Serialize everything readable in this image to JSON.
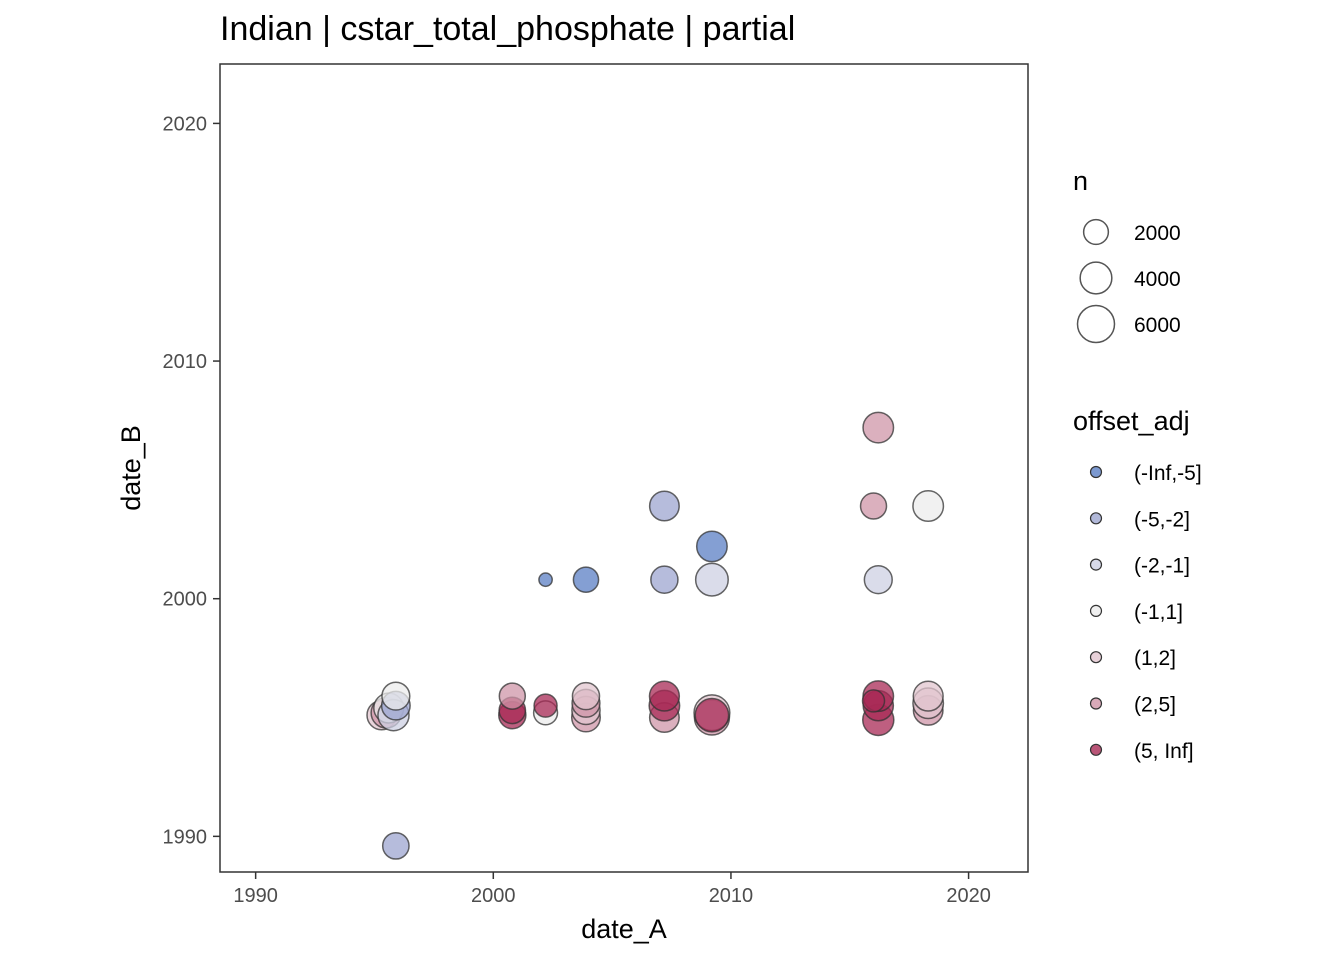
{
  "chart_data": {
    "type": "scatter",
    "title": "Indian | cstar_total_phosphate | partial",
    "xlabel": "date_A",
    "ylabel": "date_B",
    "xlim": [
      1988.5,
      2022.5
    ],
    "ylim": [
      1988.5,
      2022.5
    ],
    "xticks": [
      "1990",
      "2000",
      "2010",
      "2020"
    ],
    "yticks": [
      "1990",
      "2000",
      "2010",
      "2020"
    ],
    "grid": false,
    "size_legend": {
      "title": "n",
      "entries": [
        {
          "label": "2000",
          "value": 2000
        },
        {
          "label": "4000",
          "value": 4000
        },
        {
          "label": "6000",
          "value": 6000
        }
      ]
    },
    "color_legend": {
      "title": "offset_adj",
      "entries": [
        {
          "label": "(-Inf,-5]",
          "color": "#5b7fc4"
        },
        {
          "label": "(-5,-2]",
          "color": "#9ea6d0"
        },
        {
          "label": "(-2,-1]",
          "color": "#cdd0e3"
        },
        {
          "label": "(-1,1]",
          "color": "#ececec"
        },
        {
          "label": "(1,2]",
          "color": "#e2c6cf"
        },
        {
          "label": "(2,5]",
          "color": "#cf95a8"
        },
        {
          "label": "(5, Inf]",
          "color": "#a82a55"
        }
      ]
    },
    "points": [
      {
        "x": 1995.3,
        "y": 1995.1,
        "n": 3200,
        "group": "(1,2]"
      },
      {
        "x": 1995.5,
        "y": 1995.2,
        "n": 3600,
        "group": "(2,5]"
      },
      {
        "x": 1995.6,
        "y": 1995.4,
        "n": 3400,
        "group": "(-1,1]"
      },
      {
        "x": 1995.8,
        "y": 1995.1,
        "n": 3800,
        "group": "(-2,-1]"
      },
      {
        "x": 1995.9,
        "y": 1995.5,
        "n": 3000,
        "group": "(-5,-2]"
      },
      {
        "x": 1995.9,
        "y": 1995.9,
        "n": 2800,
        "group": "(-1,1]"
      },
      {
        "x": 1995.9,
        "y": 1989.6,
        "n": 2400,
        "group": "(-5,-2]"
      },
      {
        "x": 2000.8,
        "y": 1995.1,
        "n": 2600,
        "group": "(5, Inf]"
      },
      {
        "x": 2000.8,
        "y": 1995.3,
        "n": 2400,
        "group": "(5, Inf]"
      },
      {
        "x": 2000.8,
        "y": 1995.9,
        "n": 2300,
        "group": "(2,5]"
      },
      {
        "x": 2002.2,
        "y": 1995.2,
        "n": 1800,
        "group": "(-1,1]"
      },
      {
        "x": 2002.2,
        "y": 1995.5,
        "n": 1600,
        "group": "(5, Inf]"
      },
      {
        "x": 2002.2,
        "y": 2000.8,
        "n": 200,
        "group": "(-Inf,-5]"
      },
      {
        "x": 2003.9,
        "y": 2000.8,
        "n": 2100,
        "group": "(-Inf,-5]"
      },
      {
        "x": 2003.9,
        "y": 1995.0,
        "n": 3000,
        "group": "(2,5]"
      },
      {
        "x": 2003.9,
        "y": 1995.3,
        "n": 2900,
        "group": "(1,2]"
      },
      {
        "x": 2003.9,
        "y": 1995.6,
        "n": 2800,
        "group": "(2,5]"
      },
      {
        "x": 2003.9,
        "y": 1995.9,
        "n": 2600,
        "group": "(1,2]"
      },
      {
        "x": 2007.2,
        "y": 1995.0,
        "n": 3300,
        "group": "(2,5]"
      },
      {
        "x": 2007.2,
        "y": 1995.5,
        "n": 3600,
        "group": "(5, Inf]"
      },
      {
        "x": 2007.2,
        "y": 1995.9,
        "n": 3400,
        "group": "(5, Inf]"
      },
      {
        "x": 2007.2,
        "y": 2000.8,
        "n": 2600,
        "group": "(-5,-2]"
      },
      {
        "x": 2007.2,
        "y": 2003.9,
        "n": 3300,
        "group": "(-5,-2]"
      },
      {
        "x": 2009.2,
        "y": 1995.0,
        "n": 5200,
        "group": "(2,5]"
      },
      {
        "x": 2009.2,
        "y": 1995.2,
        "n": 5500,
        "group": "(1,2]"
      },
      {
        "x": 2009.2,
        "y": 1995.1,
        "n": 4600,
        "group": "(5, Inf]"
      },
      {
        "x": 2009.2,
        "y": 2000.8,
        "n": 4300,
        "group": "(-2,-1]"
      },
      {
        "x": 2009.2,
        "y": 2002.2,
        "n": 3600,
        "group": "(-Inf,-5]"
      },
      {
        "x": 2016.2,
        "y": 1994.9,
        "n": 3800,
        "group": "(5, Inf]"
      },
      {
        "x": 2016.2,
        "y": 1995.5,
        "n": 3500,
        "group": "(5, Inf]"
      },
      {
        "x": 2016.2,
        "y": 1995.9,
        "n": 3600,
        "group": "(5, Inf]"
      },
      {
        "x": 2016.0,
        "y": 1995.7,
        "n": 1400,
        "group": "(5, Inf]"
      },
      {
        "x": 2016.0,
        "y": 2003.9,
        "n": 2300,
        "group": "(2,5]"
      },
      {
        "x": 2016.2,
        "y": 2000.8,
        "n": 2800,
        "group": "(-2,-1]"
      },
      {
        "x": 2016.2,
        "y": 2007.2,
        "n": 3600,
        "group": "(2,5]"
      },
      {
        "x": 2018.3,
        "y": 1995.3,
        "n": 3300,
        "group": "(2,5]"
      },
      {
        "x": 2018.3,
        "y": 1995.6,
        "n": 3600,
        "group": "(1,2]"
      },
      {
        "x": 2018.3,
        "y": 1995.9,
        "n": 3400,
        "group": "(1,2]"
      },
      {
        "x": 2018.3,
        "y": 2003.9,
        "n": 3600,
        "group": "(-1,1]"
      }
    ]
  }
}
